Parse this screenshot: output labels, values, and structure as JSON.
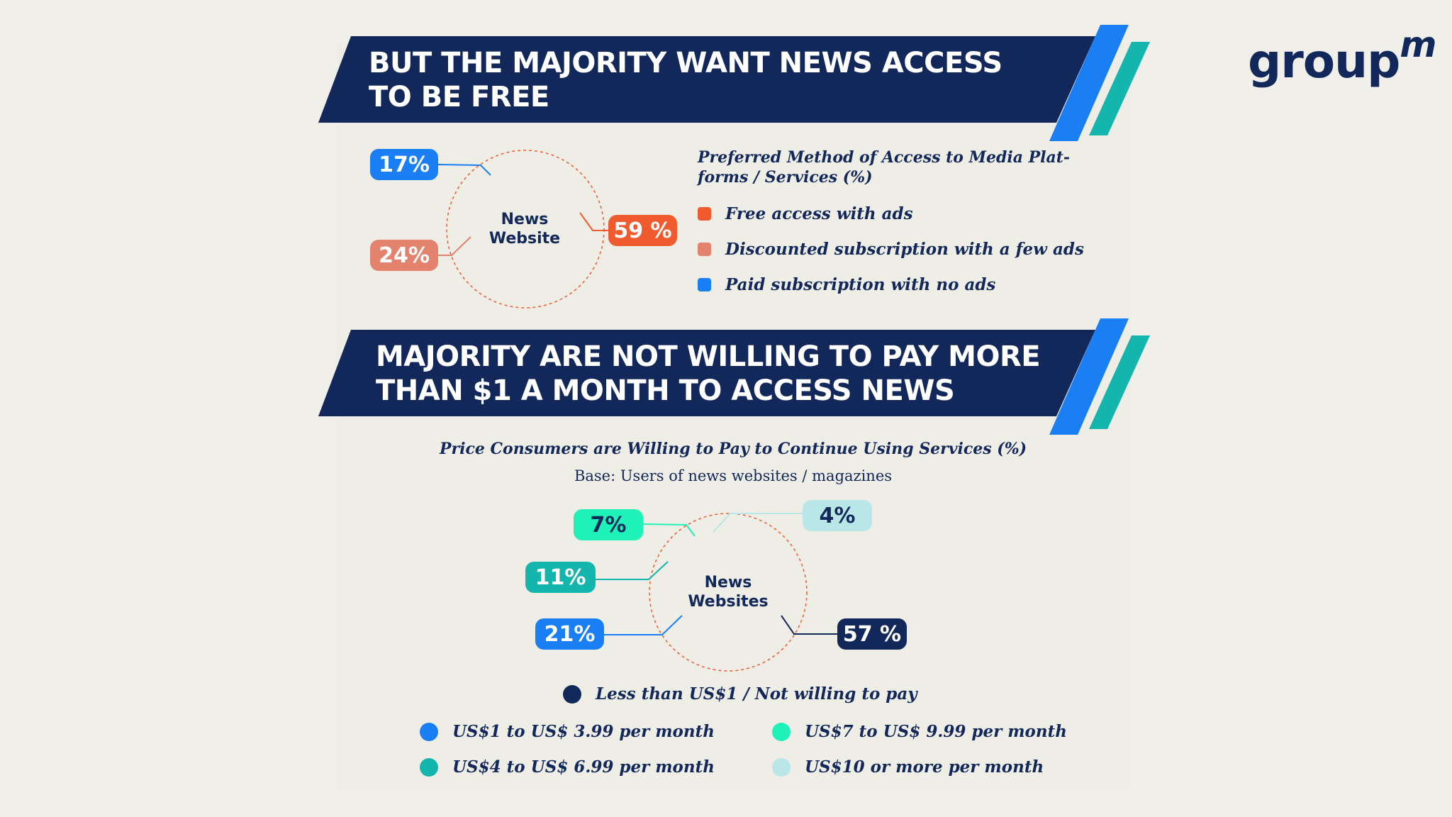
{
  "logo": {
    "text": "group",
    "sup": "m"
  },
  "section1": {
    "title_line1": "BUT THE MAJORITY WANT NEWS ACCESS",
    "title_line2": "TO BE FREE",
    "chart_center_line1": "News",
    "chart_center_line2": "Website",
    "legend_title_line1": "Preferred Method of Access to Media Plat-",
    "legend_title_line2": "forms / Services (%)"
  },
  "section2": {
    "title_line1": "MAJORITY ARE NOT WILLING TO PAY MORE",
    "title_line2": "THAN $1 A MONTH TO ACCESS NEWS",
    "subtitle": "Price Consumers are Willing to Pay to Continue Using Services (%)",
    "base_note": "Base: Users of news websites / magazines",
    "chart_center_line1": "News",
    "chart_center_line2": "Websites"
  },
  "colors": {
    "navy": "#13285a",
    "blue": "#1a7ff5",
    "teal": "#14b5ad",
    "orange": "#ef5a2e",
    "salmon": "#e4836d",
    "mint": "#1ef2b8",
    "light_aqua": "#b9e6e6"
  },
  "chart_data": [
    {
      "type": "pie",
      "title": "Preferred Method of Access to Media Platforms / Services (%)",
      "center_label": "News Website",
      "categories": [
        "Free access with ads",
        "Discounted subscription with a few ads",
        "Paid subscription with no ads"
      ],
      "values": [
        59,
        24,
        17
      ],
      "labels": [
        "59 %",
        "24%",
        "17%"
      ],
      "colors": [
        "#ef5a2e",
        "#e4836d",
        "#1a7ff5"
      ]
    },
    {
      "type": "pie",
      "title": "Price Consumers are Willing to Pay to Continue Using Services (%)",
      "subtitle": "Base: Users of news websites / magazines",
      "center_label": "News Websites",
      "categories": [
        "Less than US$1 / Not willing to pay",
        "US$1 to US$ 3.99 per month",
        "US$4 to US$ 6.99 per month",
        "US$7 to US$ 9.99 per month",
        "US$10 or more per month"
      ],
      "values": [
        57,
        21,
        11,
        7,
        4
      ],
      "labels": [
        "57 %",
        "21%",
        "11%",
        "7%",
        "4%"
      ],
      "colors": [
        "#13285a",
        "#1a7ff5",
        "#14b5ad",
        "#1ef2b8",
        "#b9e6e6"
      ]
    }
  ]
}
